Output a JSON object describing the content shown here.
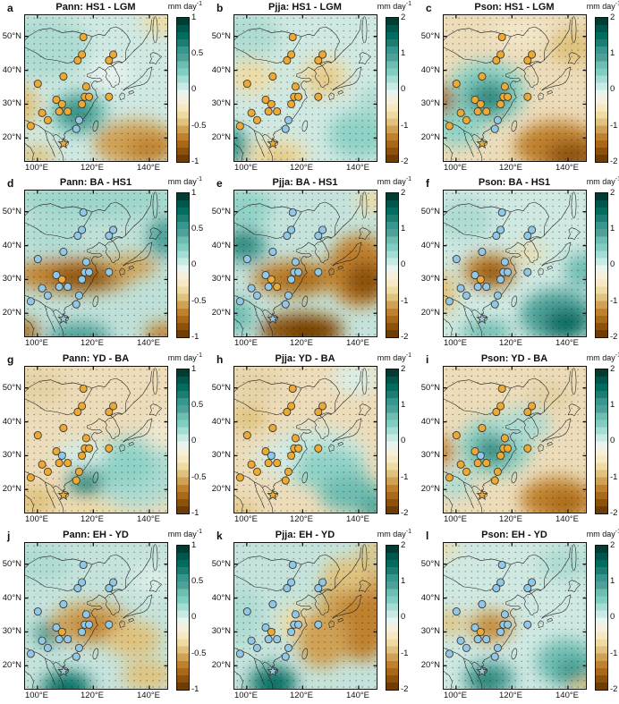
{
  "colorbar": {
    "label": "mm day",
    "label_sup": "-1",
    "palette_top_to_bottom": [
      "#003c32",
      "#00564a",
      "#016c60",
      "#1d7d70",
      "#35978f",
      "#4da198",
      "#6fbdb1",
      "#80cdc1",
      "#a6dcd3",
      "#c7eae5",
      "#eaf4ef",
      "#f6efdc",
      "#f6e8c3",
      "#eedba4",
      "#dfc27d",
      "#cfa154",
      "#bf812d",
      "#a86a18",
      "#8c510a",
      "#6d3d05"
    ]
  },
  "axes": {
    "lat_labels": [
      "50°N",
      "40°N",
      "30°N",
      "20°N"
    ],
    "lon_labels": [
      "100°E",
      "120°E",
      "140°E"
    ]
  },
  "markers": {
    "orange": "#ECAA35",
    "blue": "#90C8EA",
    "edge": "#3f3a30"
  },
  "sites": [
    [
      41,
      15
    ],
    [
      37,
      31
    ],
    [
      40,
      27
    ],
    [
      59,
      31
    ],
    [
      62,
      27
    ],
    [
      27,
      42
    ],
    [
      9,
      47
    ],
    [
      43,
      49
    ],
    [
      42,
      56
    ],
    [
      40,
      61
    ],
    [
      45,
      56
    ],
    [
      59,
      56
    ],
    [
      22,
      58
    ],
    [
      26,
      61
    ],
    [
      24,
      66
    ],
    [
      30,
      66
    ],
    [
      12,
      67
    ],
    [
      16,
      72
    ],
    [
      4,
      76
    ],
    [
      36,
      78
    ],
    [
      38,
      72
    ]
  ],
  "star_site": [
    27,
    88
  ],
  "panels": [
    {
      "letter": "a",
      "title": "Pann: HS1 - LGM",
      "cbar_ticks": [
        "1",
        "0.5",
        "0",
        "-0.5",
        "-1"
      ],
      "base": "#cfe8e2",
      "star": "orange",
      "dots": {
        "color": "orange",
        "except": [
          19,
          20
        ],
        "except_color": "blue"
      },
      "blobs": [
        [
          15,
          22,
          30,
          22,
          "#aedbd2"
        ],
        [
          38,
          67,
          20,
          15,
          "#6fbdb1"
        ],
        [
          37,
          67,
          12,
          9,
          "#2e8d82"
        ],
        [
          78,
          88,
          30,
          16,
          "#cfa154"
        ],
        [
          88,
          92,
          16,
          9,
          "#bf812d"
        ],
        [
          -2,
          62,
          12,
          14,
          "#dfc27d"
        ],
        [
          96,
          4,
          14,
          9,
          "#eedba4"
        ],
        [
          8,
          97,
          14,
          7,
          "#dfc27d"
        ],
        [
          60,
          40,
          14,
          10,
          "#e9f3ee"
        ]
      ]
    },
    {
      "letter": "b",
      "title": "Pjja: HS1 - LGM",
      "cbar_ticks": [
        "2",
        "1",
        "0",
        "-1",
        "-2"
      ],
      "base": "#cfe8e2",
      "star": "orange",
      "dots": {
        "color": "orange",
        "except": [
          19,
          20
        ],
        "except_color": "blue"
      },
      "blobs": [
        [
          12,
          42,
          15,
          12,
          "#eedba4"
        ],
        [
          63,
          42,
          17,
          14,
          "#eedba4"
        ],
        [
          64,
          44,
          9,
          7,
          "#dfc27d"
        ],
        [
          30,
          96,
          22,
          11,
          "#eedba4"
        ],
        [
          32,
          99,
          12,
          6,
          "#dfc27d"
        ],
        [
          -2,
          90,
          12,
          13,
          "#35978f"
        ],
        [
          88,
          82,
          22,
          16,
          "#8fd2c6"
        ],
        [
          10,
          14,
          22,
          15,
          "#aedbd2"
        ],
        [
          97,
          60,
          10,
          10,
          "#aedbd2"
        ]
      ]
    },
    {
      "letter": "c",
      "title": "Pson: HS1 - LGM",
      "cbar_ticks": [
        "2",
        "1",
        "0",
        "-1",
        "-2"
      ],
      "base": "#ecdcba",
      "star": "orange",
      "dots": {
        "color": "orange",
        "except": [
          19,
          20
        ],
        "except_color": "blue"
      },
      "blobs": [
        [
          30,
          53,
          28,
          22,
          "#8fd2c6"
        ],
        [
          31,
          56,
          17,
          13,
          "#4da198"
        ],
        [
          33,
          58,
          8,
          7,
          "#1d7d70"
        ],
        [
          10,
          76,
          18,
          14,
          "#8fd2c6"
        ],
        [
          80,
          90,
          30,
          17,
          "#bf812d"
        ],
        [
          90,
          97,
          18,
          10,
          "#8c510a"
        ],
        [
          -2,
          58,
          10,
          10,
          "#a86a18"
        ],
        [
          90,
          22,
          16,
          12,
          "#dfc27d"
        ],
        [
          55,
          12,
          20,
          10,
          "#f2e7c9"
        ]
      ]
    },
    {
      "letter": "d",
      "title": "Pann: BA - HS1",
      "cbar_ticks": [
        "1",
        "0.5",
        "0",
        "-0.5",
        "-1"
      ],
      "base": "#bfe0d8",
      "star": "blue",
      "dots": {
        "color": "blue",
        "except": [
          13
        ],
        "except_color": "orange"
      },
      "blobs": [
        [
          50,
          6,
          55,
          13,
          "#9ed6cb"
        ],
        [
          98,
          32,
          12,
          14,
          "#4da198"
        ],
        [
          35,
          58,
          42,
          12,
          "#bf812d"
        ],
        [
          40,
          60,
          22,
          8,
          "#8c510a"
        ],
        [
          75,
          52,
          18,
          8,
          "#cfa154"
        ],
        [
          0,
          97,
          10,
          8,
          "#a86a18"
        ],
        [
          38,
          101,
          22,
          10,
          "#4da198"
        ],
        [
          97,
          99,
          13,
          8,
          "#bf812d"
        ],
        [
          20,
          30,
          20,
          12,
          "#aedbd2"
        ]
      ]
    },
    {
      "letter": "e",
      "title": "Pjja: BA - HS1",
      "cbar_ticks": [
        "2",
        "1",
        "0",
        "-1",
        "-2"
      ],
      "base": "#c5e3dc",
      "star": "blue",
      "dots": {
        "color": "blue",
        "except": [
          13,
          15
        ],
        "except_color": "orange"
      },
      "blobs": [
        [
          8,
          38,
          15,
          12,
          "#4da198"
        ],
        [
          5,
          36,
          8,
          7,
          "#1d7d70"
        ],
        [
          8,
          12,
          18,
          13,
          "#8fd2c6"
        ],
        [
          42,
          60,
          30,
          12,
          "#bf812d"
        ],
        [
          46,
          63,
          16,
          7,
          "#a86a18"
        ],
        [
          88,
          55,
          23,
          25,
          "#bf812d"
        ],
        [
          92,
          62,
          14,
          13,
          "#8c510a"
        ],
        [
          47,
          96,
          30,
          12,
          "#8c510a"
        ],
        [
          52,
          99,
          16,
          7,
          "#6d3d05"
        ],
        [
          2,
          86,
          12,
          12,
          "#6fbdb1"
        ],
        [
          97,
          7,
          11,
          8,
          "#eedba4"
        ]
      ]
    },
    {
      "letter": "f",
      "title": "Pson: BA - HS1",
      "cbar_ticks": [
        "2",
        "1",
        "0",
        "-1",
        "-2"
      ],
      "base": "#cfe8e2",
      "star": "blue",
      "dots": {
        "color": "blue",
        "except": [
          13
        ],
        "except_color": "orange"
      },
      "blobs": [
        [
          32,
          55,
          19,
          12,
          "#bf812d"
        ],
        [
          34,
          57,
          10,
          7,
          "#8c510a"
        ],
        [
          -2,
          70,
          11,
          15,
          "#dfc27d"
        ],
        [
          80,
          86,
          26,
          18,
          "#4da198"
        ],
        [
          86,
          91,
          15,
          10,
          "#016c60"
        ],
        [
          97,
          55,
          12,
          12,
          "#6fbdb1"
        ],
        [
          30,
          97,
          18,
          8,
          "#6fbdb1"
        ],
        [
          60,
          43,
          11,
          6,
          "#eedba4"
        ],
        [
          15,
          20,
          20,
          14,
          "#aedbd2"
        ]
      ]
    },
    {
      "letter": "g",
      "title": "Pann: YD - BA",
      "cbar_ticks": [
        "1",
        "0.5",
        "0",
        "-0.5",
        "-1"
      ],
      "base": "#ecdcba",
      "star": "orange",
      "dots": {
        "color": "orange",
        "except": [
          13
        ],
        "except_color": "blue"
      },
      "blobs": [
        [
          78,
          72,
          35,
          25,
          "#aedbd2"
        ],
        [
          70,
          68,
          22,
          15,
          "#8fd2c6"
        ],
        [
          42,
          79,
          13,
          10,
          "#4da198"
        ],
        [
          44,
          81,
          7,
          5,
          "#1d7d70"
        ],
        [
          40,
          60,
          18,
          10,
          "#d3ebe4"
        ],
        [
          8,
          92,
          14,
          10,
          "#dfc27d"
        ],
        [
          48,
          101,
          20,
          8,
          "#eedba4"
        ],
        [
          10,
          14,
          20,
          12,
          "#e4d1a4"
        ],
        [
          97,
          45,
          12,
          12,
          "#f0e8d0"
        ]
      ]
    },
    {
      "letter": "h",
      "title": "Pjja: YD - BA",
      "cbar_ticks": [
        "2",
        "1",
        "0",
        "-1",
        "-2"
      ],
      "base": "#ecdcba",
      "star": "orange",
      "dots": {
        "color": "orange",
        "except": [
          13
        ],
        "except_color": "blue"
      },
      "blobs": [
        [
          58,
          62,
          35,
          20,
          "#c9e8e1"
        ],
        [
          66,
          70,
          26,
          15,
          "#8fd2c6"
        ],
        [
          82,
          87,
          22,
          13,
          "#6fbdb1"
        ],
        [
          30,
          63,
          16,
          10,
          "#d3ebe4"
        ],
        [
          10,
          35,
          13,
          9,
          "#dfc27d"
        ],
        [
          85,
          8,
          16,
          10,
          "#d9eee8"
        ],
        [
          4,
          99,
          13,
          6,
          "#dfc27d"
        ],
        [
          99,
          97,
          11,
          8,
          "#4da198"
        ],
        [
          15,
          12,
          18,
          10,
          "#e4d1a4"
        ]
      ]
    },
    {
      "letter": "i",
      "title": "Pson: YD - BA",
      "cbar_ticks": [
        "2",
        "1",
        "0",
        "-1",
        "-2"
      ],
      "base": "#ecdcba",
      "star": "orange",
      "dots": {
        "color": "orange",
        "except": [
          13
        ],
        "except_color": "blue"
      },
      "blobs": [
        [
          36,
          55,
          26,
          20,
          "#8fd2c6"
        ],
        [
          34,
          57,
          14,
          11,
          "#4da198"
        ],
        [
          35,
          58,
          7,
          5,
          "#1d7d70"
        ],
        [
          55,
          40,
          20,
          12,
          "#aedbd2"
        ],
        [
          8,
          80,
          13,
          10,
          "#aedbd2"
        ],
        [
          80,
          91,
          26,
          15,
          "#bf812d"
        ],
        [
          86,
          95,
          13,
          8,
          "#a86a18"
        ],
        [
          -2,
          58,
          9,
          10,
          "#bf812d"
        ],
        [
          75,
          20,
          16,
          10,
          "#e4d1a4"
        ]
      ]
    },
    {
      "letter": "j",
      "title": "Pann: EH - YD",
      "cbar_ticks": [
        "1",
        "0.5",
        "0",
        "-0.5",
        "-1"
      ],
      "base": "#c5e3dc",
      "star": "blue",
      "dots": {
        "color": "blue",
        "except": [
          13
        ],
        "except_color": "orange"
      },
      "blobs": [
        [
          17,
          62,
          11,
          8,
          "#4da198"
        ],
        [
          16,
          61,
          5,
          4,
          "#1d7d70"
        ],
        [
          46,
          55,
          28,
          14,
          "#cfa154"
        ],
        [
          49,
          58,
          15,
          8,
          "#bf812d"
        ],
        [
          76,
          66,
          20,
          12,
          "#dfc27d"
        ],
        [
          29,
          99,
          18,
          11,
          "#1d7d70"
        ],
        [
          31,
          101,
          10,
          6,
          "#016c60"
        ],
        [
          86,
          91,
          18,
          10,
          "#dfc27d"
        ],
        [
          12,
          14,
          20,
          13,
          "#aedbd2"
        ],
        [
          90,
          25,
          14,
          10,
          "#ddeee8"
        ]
      ]
    },
    {
      "letter": "k",
      "title": "Pjja: EH - YD",
      "cbar_ticks": [
        "2",
        "1",
        "0",
        "-1",
        "-2"
      ],
      "base": "#c5e3dc",
      "star": "blue",
      "dots": {
        "color": "blue",
        "except": [
          13
        ],
        "except_color": "orange"
      },
      "blobs": [
        [
          86,
          45,
          26,
          35,
          "#cfa154"
        ],
        [
          91,
          55,
          18,
          26,
          "#bf812d"
        ],
        [
          80,
          22,
          18,
          12,
          "#dfc27d"
        ],
        [
          46,
          55,
          15,
          12,
          "#eedba4"
        ],
        [
          62,
          66,
          18,
          20,
          "#cfa154"
        ],
        [
          27,
          96,
          17,
          12,
          "#1d7d70"
        ],
        [
          29,
          99,
          10,
          7,
          "#016c60"
        ],
        [
          6,
          50,
          14,
          20,
          "#aedbd2"
        ],
        [
          98,
          4,
          10,
          7,
          "#dfc27d"
        ]
      ]
    },
    {
      "letter": "l",
      "title": "Pson: EH - YD",
      "cbar_ticks": [
        "2",
        "1",
        "0",
        "-1",
        "-2"
      ],
      "base": "#cfe8e2",
      "star": "blue",
      "dots": {
        "color": "blue",
        "except": [
          13
        ],
        "except_color": "orange"
      },
      "blobs": [
        [
          33,
          57,
          16,
          11,
          "#cfa154"
        ],
        [
          34,
          58,
          9,
          6,
          "#bf812d"
        ],
        [
          4,
          55,
          10,
          8,
          "#dfc27d"
        ],
        [
          0,
          4,
          10,
          6,
          "#eedba4"
        ],
        [
          32,
          93,
          18,
          12,
          "#4da198"
        ],
        [
          30,
          96,
          10,
          7,
          "#1d7d70"
        ],
        [
          86,
          82,
          21,
          16,
          "#6fbdb1"
        ],
        [
          91,
          89,
          12,
          9,
          "#35978f"
        ],
        [
          85,
          14,
          18,
          12,
          "#aedbd2"
        ],
        [
          99,
          99,
          10,
          6,
          "#dfc27d"
        ]
      ]
    }
  ]
}
